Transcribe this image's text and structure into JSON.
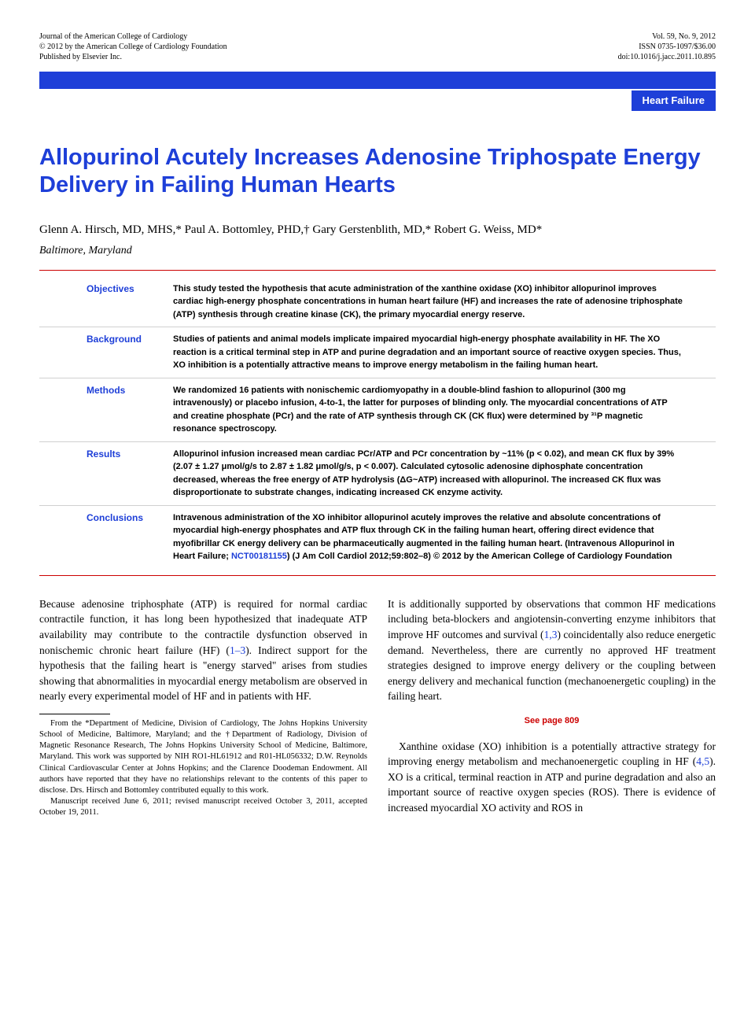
{
  "header": {
    "left_line1": "Journal of the American College of Cardiology",
    "left_line2": "© 2012 by the American College of Cardiology Foundation",
    "left_line3": "Published by Elsevier Inc.",
    "right_line1": "Vol. 59, No. 9, 2012",
    "right_line2": "ISSN 0735-1097/$36.00",
    "right_line3": "doi:10.1016/j.jacc.2011.10.895"
  },
  "category": "Heart Failure",
  "title": "Allopurinol Acutely Increases Adenosine Triphospate Energy Delivery in Failing Human Hearts",
  "authors": "Glenn A. Hirsch, MD, MHS,* Paul A. Bottomley, PHD,† Gary Gerstenblith, MD,* Robert G. Weiss, MD*",
  "location": "Baltimore, Maryland",
  "abstract": {
    "sections": [
      {
        "label": "Objectives",
        "text": "This study tested the hypothesis that acute administration of the xanthine oxidase (XO) inhibitor allopurinol improves cardiac high-energy phosphate concentrations in human heart failure (HF) and increases the rate of adenosine triphosphate (ATP) synthesis through creatine kinase (CK), the primary myocardial energy reserve."
      },
      {
        "label": "Background",
        "text": "Studies of patients and animal models implicate impaired myocardial high-energy phosphate availability in HF. The XO reaction is a critical terminal step in ATP and purine degradation and an important source of reactive oxygen species. Thus, XO inhibition is a potentially attractive means to improve energy metabolism in the failing human heart."
      },
      {
        "label": "Methods",
        "text": "We randomized 16 patients with nonischemic cardiomyopathy in a double-blind fashion to allopurinol (300 mg intravenously) or placebo infusion, 4-to-1, the latter for purposes of blinding only. The myocardial concentrations of ATP and creatine phosphate (PCr) and the rate of ATP synthesis through CK (CK flux) were determined by ³¹P magnetic resonance spectroscopy."
      },
      {
        "label": "Results",
        "text": "Allopurinol infusion increased mean cardiac PCr/ATP and PCr concentration by ~11% (p < 0.02), and mean CK flux by 39% (2.07 ± 1.27 μmol/g/s to 2.87 ± 1.82 μmol/g/s, p < 0.007). Calculated cytosolic adenosine diphosphate concentration decreased, whereas the free energy of ATP hydrolysis (ΔG~ATP) increased with allopurinol. The increased CK flux was disproportionate to substrate changes, indicating increased CK enzyme activity."
      },
      {
        "label": "Conclusions",
        "text_pre": "Intravenous administration of the XO inhibitor allopurinol acutely improves the relative and absolute concentrations of myocardial high-energy phosphates and ATP flux through CK in the failing human heart, offering direct evidence that myofibrillar CK energy delivery can be pharmaceutically augmented in the failing human heart. (Intravenous Allopurinol in Heart Failure; ",
        "link": "NCT00181155",
        "text_post": ")   (J Am Coll Cardiol 2012;59:802–8) © 2012 by the American College of Cardiology Foundation"
      }
    ]
  },
  "body": {
    "col1_p1_pre": "Because adenosine triphosphate (ATP) is required for normal cardiac contractile function, it has long been hypothesized that inadequate ATP availability may contribute to the contractile dysfunction observed in nonischemic chronic heart failure (HF) (",
    "col1_ref1": "1–3",
    "col1_p1_post": "). Indirect support for the hypothesis that the failing heart is \"energy starved\" arises from studies showing that abnormalities in myocardial energy metabolism are observed in nearly every experimental model of HF and in patients with HF.",
    "col2_p1_pre": "It is additionally supported by observations that common HF medications including beta-blockers and angiotensin-converting enzyme inhibitors that improve HF outcomes and survival (",
    "col2_ref1": "1,3",
    "col2_p1_post": ") coincidentally also reduce energetic demand. Nevertheless, there are currently no approved HF treatment strategies designed to improve energy delivery or the coupling between energy delivery and mechanical function (mechanoenergetic coupling) in the failing heart.",
    "see_page": "See page 809",
    "col2_p2_pre": "Xanthine oxidase (XO) inhibition is a potentially attractive strategy for improving energy metabolism and mechanoenergetic coupling in HF (",
    "col2_ref2": "4,5",
    "col2_p2_post": "). XO is a critical, terminal reaction in ATP and purine degradation and also an important source of reactive oxygen species (ROS). There is evidence of increased myocardial XO activity and ROS in"
  },
  "footnote": {
    "p1": "From the *Department of Medicine, Division of Cardiology, The Johns Hopkins University School of Medicine, Baltimore, Maryland; and the †Department of Radiology, Division of Magnetic Resonance Research, The Johns Hopkins University School of Medicine, Baltimore, Maryland. This work was supported by NIH RO1-HL61912 and R01-HL056332; D.W. Reynolds Clinical Cardiovascular Center at Johns Hopkins; and the Clarence Doodeman Endowment. All authors have reported that they have no relationships relevant to the contents of this paper to disclose. Drs. Hirsch and Bottomley contributed equally to this work.",
    "p2": "Manuscript received June 6, 2011; revised manuscript received October 3, 2011, accepted October 19, 2011."
  }
}
